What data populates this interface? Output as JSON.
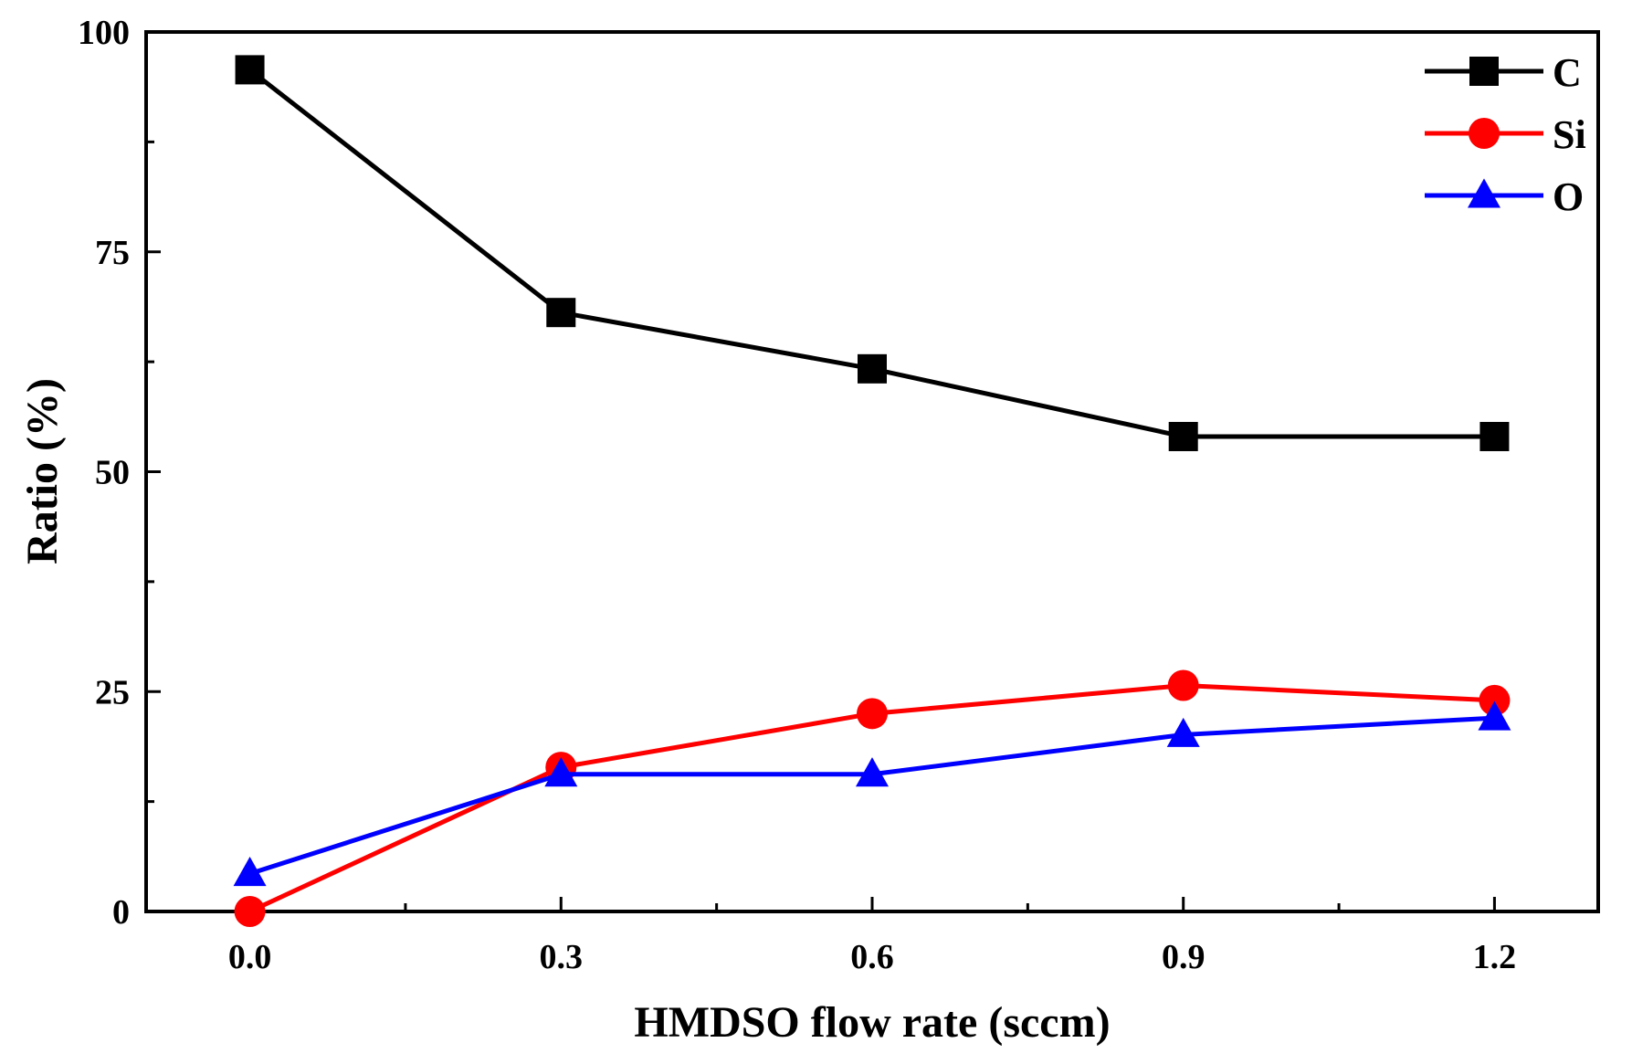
{
  "chart_data": {
    "type": "line",
    "title": "",
    "xlabel": "HMDSO flow rate (sccm)",
    "ylabel": "Ratio (%)",
    "x": [
      0.0,
      0.3,
      0.6,
      0.9,
      1.2
    ],
    "x_tick_labels": [
      "0.0",
      "0.3",
      "0.6",
      "0.9",
      "1.2"
    ],
    "y_tick_labels": [
      "0",
      "25",
      "50",
      "75",
      "100"
    ],
    "xlim": [
      -0.1,
      1.3
    ],
    "ylim": [
      0,
      100
    ],
    "legend_position": "top-right",
    "series": [
      {
        "name": "C",
        "marker": "square",
        "color": "#000000",
        "values": [
          95.7,
          68.1,
          61.7,
          54.0,
          54.0
        ]
      },
      {
        "name": "Si",
        "marker": "circle",
        "color": "#ff0000",
        "values": [
          0.0,
          16.4,
          22.5,
          25.7,
          24.0
        ]
      },
      {
        "name": "O",
        "marker": "triangle",
        "color": "#0000ff",
        "values": [
          4.3,
          15.6,
          15.6,
          20.1,
          22.0
        ]
      }
    ]
  }
}
